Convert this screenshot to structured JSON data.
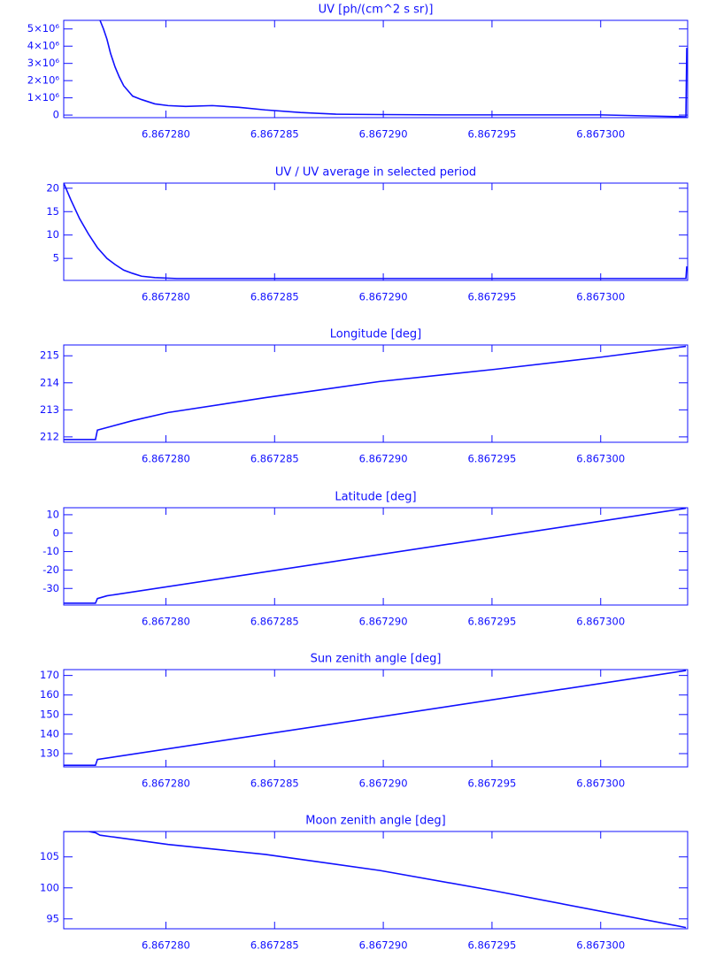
{
  "chart_data": [
    {
      "type": "line",
      "title": "UV [ph/(cm^2 s sr)]",
      "color": "#1010ff",
      "x": [
        6.86727697,
        6.86727713,
        6.86727729,
        6.86727745,
        6.86727766,
        6.86727786,
        6.86727806,
        6.86727847,
        6.86727888,
        6.86727949,
        6.8672801,
        6.86728091,
        6.86728213,
        6.86728335,
        6.86728457,
        6.86728619,
        6.86728782,
        6.86728985,
        6.8672927,
        6.86729676,
        6.86730002,
        6.86730392,
        6.86730396
      ],
      "values": [
        5500000,
        5000000,
        4400000,
        3600000,
        2800000,
        2200000,
        1700000,
        1100000,
        900000,
        650000,
        550000,
        500000,
        550000,
        450000,
        300000,
        150000,
        50000,
        30000,
        10000,
        10000,
        10000,
        -100000,
        3900000
      ],
      "xlim": [
        6.8672753,
        6.867304
      ],
      "ylim": [
        -150000,
        5500000
      ],
      "xticks": [
        {
          "value": 6.86728,
          "label": "6.867280"
        },
        {
          "value": 6.867285,
          "label": "6.867285"
        },
        {
          "value": 6.86729,
          "label": "6.867290"
        },
        {
          "value": 6.867295,
          "label": "6.867295"
        },
        {
          "value": 6.8673,
          "label": "6.867300"
        }
      ],
      "yticks": [
        0,
        {
          "value": 1000000,
          "label": "1×10⁶"
        },
        {
          "value": 2000000,
          "label": "2×10⁶"
        },
        {
          "value": 3000000,
          "label": "3×10⁶"
        },
        {
          "value": 4000000,
          "label": "4×10⁶"
        },
        {
          "value": 5000000,
          "label": "5×10⁶"
        }
      ]
    },
    {
      "type": "line",
      "title": "UV / UV average in selected period",
      "color": "#1010ff",
      "x": [
        6.8672753,
        6.86727563,
        6.86727603,
        6.86727644,
        6.86727685,
        6.86727729,
        6.86727766,
        6.86727806,
        6.86727847,
        6.86727888,
        6.86727949,
        6.8672805,
        6.86728457,
        6.8672927,
        6.86730002,
        6.86730392,
        6.86730396
      ],
      "values": [
        21.1,
        17.5,
        13.5,
        10.2,
        7.3,
        5.0,
        3.7,
        2.5,
        1.8,
        1.2,
        0.9,
        0.7,
        0.7,
        0.7,
        0.7,
        0.7,
        3.3
      ],
      "xlim": [
        6.8672753,
        6.867304
      ],
      "ylim": [
        0.3,
        21.1
      ],
      "xticks": [
        {
          "value": 6.86728,
          "label": "6.867280"
        },
        {
          "value": 6.867285,
          "label": "6.867285"
        },
        {
          "value": 6.86729,
          "label": "6.867290"
        },
        {
          "value": 6.867295,
          "label": "6.867295"
        },
        {
          "value": 6.8673,
          "label": "6.867300"
        }
      ],
      "yticks": [
        5,
        10,
        15,
        20
      ]
    },
    {
      "type": "line",
      "title": "Longitude [deg]",
      "color": "#1010ff",
      "x": [
        6.8672753,
        6.86727676,
        6.86727685,
        6.86727847,
        6.8672801,
        6.86728457,
        6.86728985,
        6.86729514,
        6.86730002,
        6.86730392
      ],
      "values": [
        211.9,
        211.9,
        212.25,
        212.6,
        212.9,
        213.45,
        214.05,
        214.5,
        214.95,
        215.35
      ],
      "xlim": [
        6.8672753,
        6.867304
      ],
      "ylim": [
        211.8,
        215.4
      ],
      "xticks": [
        {
          "value": 6.86728,
          "label": "6.867280"
        },
        {
          "value": 6.867285,
          "label": "6.867285"
        },
        {
          "value": 6.86729,
          "label": "6.867290"
        },
        {
          "value": 6.867295,
          "label": "6.867295"
        },
        {
          "value": 6.8673,
          "label": "6.867300"
        }
      ],
      "yticks": [
        212,
        213,
        214,
        215
      ]
    },
    {
      "type": "line",
      "title": "Latitude [deg]",
      "color": "#1010ff",
      "x": [
        6.8672753,
        6.86727676,
        6.86727685,
        6.86727729,
        6.86730392
      ],
      "values": [
        -38,
        -38,
        -35.5,
        -34,
        13.5
      ],
      "xlim": [
        6.8672753,
        6.867304
      ],
      "ylim": [
        -39,
        13.8
      ],
      "xticks": [
        {
          "value": 6.86728,
          "label": "6.867280"
        },
        {
          "value": 6.867285,
          "label": "6.867285"
        },
        {
          "value": 6.86729,
          "label": "6.867290"
        },
        {
          "value": 6.867295,
          "label": "6.867295"
        },
        {
          "value": 6.8673,
          "label": "6.867300"
        }
      ],
      "yticks": [
        -30,
        -20,
        -10,
        0,
        10
      ]
    },
    {
      "type": "line",
      "title": "Sun zenith angle [deg]",
      "color": "#1010ff",
      "x": [
        6.8672753,
        6.86727676,
        6.86727685,
        6.86730392
      ],
      "values": [
        124,
        124,
        127,
        172.5
      ],
      "xlim": [
        6.8672753,
        6.867304
      ],
      "ylim": [
        123.2,
        173
      ],
      "xticks": [
        {
          "value": 6.86728,
          "label": "6.867280"
        },
        {
          "value": 6.867285,
          "label": "6.867285"
        },
        {
          "value": 6.86729,
          "label": "6.867290"
        },
        {
          "value": 6.867295,
          "label": "6.867295"
        },
        {
          "value": 6.8673,
          "label": "6.867300"
        }
      ],
      "yticks": [
        130,
        140,
        150,
        160,
        170
      ]
    },
    {
      "type": "line",
      "title": "Moon zenith angle [deg]",
      "color": "#1010ff",
      "x": [
        6.8672753,
        6.86727644,
        6.86727676,
        6.86727697,
        6.8672801,
        6.86728457,
        6.86728985,
        6.86729514,
        6.86730392
      ],
      "values": [
        109.1,
        109.1,
        108.9,
        108.5,
        107.0,
        105.4,
        102.8,
        99.5,
        93.6
      ],
      "xlim": [
        6.8672753,
        6.867304
      ],
      "ylim": [
        93.4,
        109.1
      ],
      "xticks": [
        {
          "value": 6.86728,
          "label": "6.867280"
        },
        {
          "value": 6.867285,
          "label": "6.867285"
        },
        {
          "value": 6.86729,
          "label": "6.867290"
        },
        {
          "value": 6.867295,
          "label": "6.867295"
        },
        {
          "value": 6.8673,
          "label": "6.867300"
        }
      ],
      "yticks": [
        95,
        100,
        105
      ]
    }
  ]
}
